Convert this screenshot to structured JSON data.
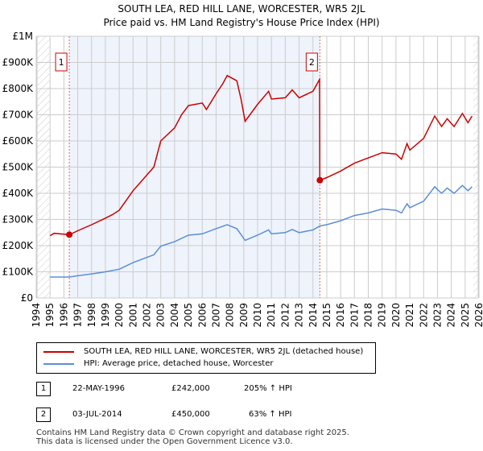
{
  "chart_data": {
    "type": "line",
    "title": "SOUTH LEA, RED HILL LANE, WORCESTER, WR5 2JL",
    "subtitle": "Price paid vs. HM Land Registry's House Price Index (HPI)",
    "xlim": [
      1994,
      2026
    ],
    "ylim": [
      0,
      1000000
    ],
    "y_ticks": [
      {
        "v": 0,
        "label": "£0"
      },
      {
        "v": 100000,
        "label": "£100K"
      },
      {
        "v": 200000,
        "label": "£200K"
      },
      {
        "v": 300000,
        "label": "£300K"
      },
      {
        "v": 400000,
        "label": "£400K"
      },
      {
        "v": 500000,
        "label": "£500K"
      },
      {
        "v": 600000,
        "label": "£600K"
      },
      {
        "v": 700000,
        "label": "£700K"
      },
      {
        "v": 800000,
        "label": "£800K"
      },
      {
        "v": 900000,
        "label": "£900K"
      },
      {
        "v": 1000000,
        "label": "£1M"
      }
    ],
    "x_ticks": [
      "1994",
      "1995",
      "1996",
      "1997",
      "1998",
      "1999",
      "2000",
      "2001",
      "2002",
      "2003",
      "2004",
      "2005",
      "2006",
      "2007",
      "2008",
      "2009",
      "2010",
      "2011",
      "2012",
      "2013",
      "2014",
      "2015",
      "2016",
      "2017",
      "2018",
      "2019",
      "2020",
      "2021",
      "2022",
      "2023",
      "2024",
      "2025",
      "2026"
    ],
    "colors": {
      "property": "#cc0000",
      "hpi": "#5b8fd6",
      "shade": "#eef3fc",
      "marker_line": "#e06666"
    },
    "series": [
      {
        "name": "SOUTH LEA, RED HILL LANE, WORCESTER, WR5 2JL (detached house)",
        "color": "#cc0000",
        "x": [
          1995,
          1995.3,
          1996.4,
          1997,
          1998,
          1999,
          1999.5,
          2000,
          2001,
          2002,
          2002.5,
          2003,
          2004,
          2004.5,
          2005,
          2006,
          2006.3,
          2007,
          2007.5,
          2007.8,
          2008.5,
          2008.8,
          2009.1,
          2010,
          2010.8,
          2011,
          2012,
          2012.5,
          2013,
          2014,
          2014.48,
          2014.5,
          2015,
          2016,
          2017,
          2018,
          2019,
          2020,
          2020.4,
          2020.8,
          2021,
          2022,
          2022.8,
          2023.3,
          2023.7,
          2024.2,
          2024.8,
          2025.2,
          2025.5
        ],
        "y": [
          238000,
          247000,
          242000,
          257000,
          280000,
          305000,
          318000,
          335000,
          410000,
          470000,
          500000,
          600000,
          650000,
          700000,
          735000,
          745000,
          720000,
          780000,
          820000,
          850000,
          830000,
          760000,
          675000,
          740000,
          790000,
          760000,
          765000,
          795000,
          765000,
          790000,
          835000,
          450000,
          460000,
          485000,
          515000,
          535000,
          555000,
          550000,
          530000,
          590000,
          565000,
          610000,
          695000,
          655000,
          685000,
          655000,
          705000,
          670000,
          695000
        ]
      },
      {
        "name": "HPI: Average price, detached house, Worcester",
        "color": "#5b8fd6",
        "x": [
          1995,
          1996.4,
          1997,
          1998,
          1999,
          2000,
          2001,
          2002,
          2002.5,
          2003,
          2004,
          2005,
          2006,
          2007,
          2007.8,
          2008.5,
          2009.1,
          2010,
          2010.8,
          2011,
          2012,
          2012.5,
          2013,
          2014,
          2014.5,
          2015,
          2016,
          2017,
          2018,
          2019,
          2020,
          2020.4,
          2020.8,
          2021,
          2022,
          2022.8,
          2023.3,
          2023.7,
          2024.2,
          2024.8,
          2025.2,
          2025.5
        ],
        "y": [
          80000,
          80000,
          85000,
          92000,
          100000,
          110000,
          135000,
          155000,
          165000,
          198000,
          215000,
          240000,
          245000,
          265000,
          280000,
          265000,
          220000,
          240000,
          260000,
          245000,
          250000,
          262000,
          250000,
          260000,
          275000,
          280000,
          295000,
          315000,
          325000,
          340000,
          335000,
          325000,
          360000,
          345000,
          370000,
          425000,
          400000,
          420000,
          400000,
          430000,
          410000,
          425000
        ]
      }
    ],
    "annotations": [
      {
        "label": "1",
        "x": 1996.39,
        "y": 242000
      },
      {
        "label": "2",
        "x": 2014.5,
        "y": 450000
      }
    ],
    "legend_position": "bottom"
  },
  "table": [
    {
      "num": "1",
      "date": "22-MAY-1996",
      "price": "£242,000",
      "hpi": "205% ↑ HPI"
    },
    {
      "num": "2",
      "date": "03-JUL-2014",
      "price": "£450,000",
      "hpi": "63% ↑ HPI"
    }
  ],
  "footer": [
    "Contains HM Land Registry data © Crown copyright and database right 2025.",
    "This data is licensed under the Open Government Licence v3.0."
  ]
}
